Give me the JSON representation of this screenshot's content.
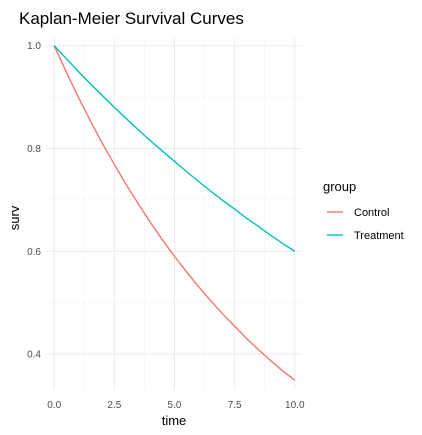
{
  "chart_data": {
    "type": "line",
    "title": "Kaplan-Meier Survival Curves",
    "xlabel": "time",
    "ylabel": "surv",
    "xlim": [
      -0.3,
      10.3
    ],
    "ylim": [
      0.33,
      1.015
    ],
    "x_ticks": [
      0,
      2.5,
      5,
      7.5,
      10
    ],
    "x_tick_labels": [
      "0.0",
      "2.5",
      "5.0",
      "7.5",
      "10.0"
    ],
    "y_ticks": [
      0.4,
      0.6,
      0.8,
      1.0
    ],
    "y_tick_labels": [
      "0.4",
      "0.6",
      "0.8",
      "1.0"
    ],
    "grid": true,
    "legend": {
      "title": "group",
      "position": "right"
    },
    "series": [
      {
        "name": "Control",
        "color": "#F8766D",
        "x": [
          0,
          0.5,
          1,
          1.5,
          2,
          2.5,
          3,
          3.5,
          4,
          4.5,
          5,
          5.5,
          6,
          6.5,
          7,
          7.5,
          8,
          8.5,
          9,
          9.5,
          10
        ],
        "y": [
          1.0,
          0.949,
          0.9,
          0.854,
          0.81,
          0.769,
          0.729,
          0.692,
          0.656,
          0.622,
          0.59,
          0.56,
          0.531,
          0.504,
          0.478,
          0.454,
          0.43,
          0.408,
          0.387,
          0.367,
          0.349
        ]
      },
      {
        "name": "Treatment",
        "color": "#00BFC4",
        "x": [
          0,
          0.5,
          1,
          1.5,
          2,
          2.5,
          3,
          3.5,
          4,
          4.5,
          5,
          5.5,
          6,
          6.5,
          7,
          7.5,
          8,
          8.5,
          9,
          9.5,
          10
        ],
        "y": [
          1.0,
          0.975,
          0.95,
          0.926,
          0.903,
          0.88,
          0.858,
          0.836,
          0.815,
          0.795,
          0.775,
          0.755,
          0.736,
          0.717,
          0.699,
          0.682,
          0.664,
          0.648,
          0.631,
          0.615,
          0.6
        ]
      }
    ]
  }
}
